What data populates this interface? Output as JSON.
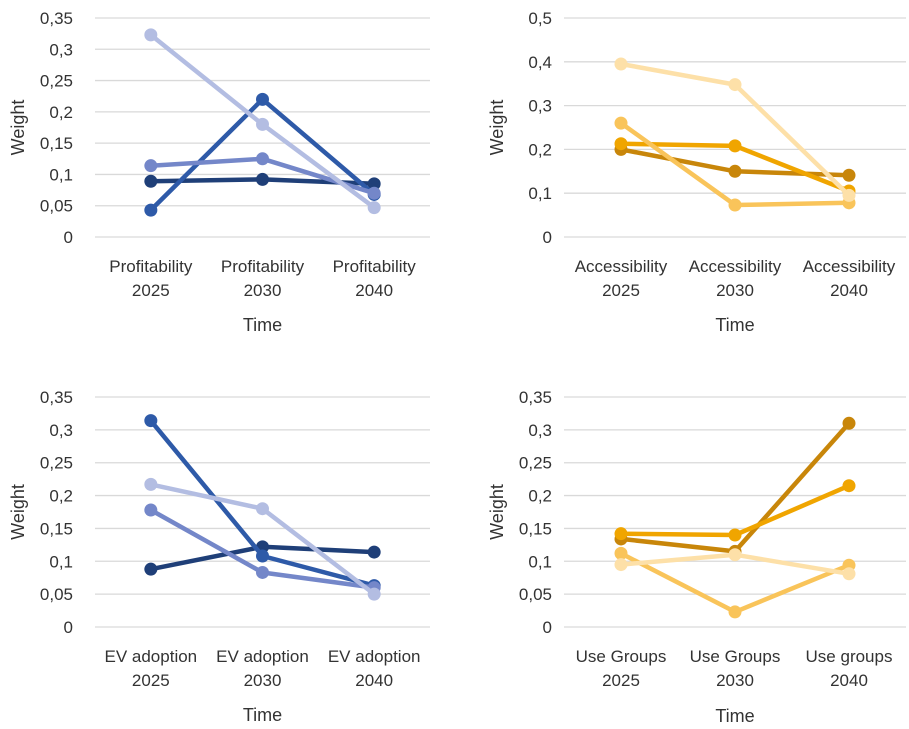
{
  "chart_data": [
    {
      "type": "line",
      "categories": [
        [
          "Profitability",
          "2025"
        ],
        [
          "Profitability",
          "2030"
        ],
        [
          "Profitability",
          "2040"
        ]
      ],
      "xlabel": "Time",
      "ylabel": "Weight",
      "ylim": [
        0,
        0.35
      ],
      "yticks": [
        "0",
        "0,05",
        "0,1",
        "0,15",
        "0,2",
        "0,25",
        "0,3",
        "0,35"
      ],
      "grid": true,
      "series": [
        {
          "color": "#1f3f78",
          "values": [
            0.089,
            0.092,
            0.085
          ]
        },
        {
          "color": "#2e5aa8",
          "values": [
            0.043,
            0.22,
            0.068
          ]
        },
        {
          "color": "#7487c9",
          "values": [
            0.114,
            0.125,
            0.07
          ]
        },
        {
          "color": "#b3bde2",
          "values": [
            0.323,
            0.18,
            0.047
          ]
        }
      ]
    },
    {
      "type": "line",
      "categories": [
        [
          "Accessibility",
          "2025"
        ],
        [
          "Accessibility",
          "2030"
        ],
        [
          "Accessibility",
          "2040"
        ]
      ],
      "xlabel": "Time",
      "ylabel": "Weight",
      "ylim": [
        0,
        0.5
      ],
      "yticks": [
        "0",
        "0,1",
        "0,2",
        "0,3",
        "0,4",
        "0,5"
      ],
      "grid": true,
      "series": [
        {
          "color": "#c8860a",
          "values": [
            0.2,
            0.15,
            0.141
          ]
        },
        {
          "color": "#f0a500",
          "values": [
            0.213,
            0.208,
            0.105
          ]
        },
        {
          "color": "#f9c45a",
          "values": [
            0.26,
            0.073,
            0.078
          ]
        },
        {
          "color": "#fde0a8",
          "values": [
            0.395,
            0.348,
            0.095
          ]
        }
      ]
    },
    {
      "type": "line",
      "categories": [
        [
          "EV adoption",
          "2025"
        ],
        [
          "EV adoption",
          "2030"
        ],
        [
          "EV adoption",
          "2040"
        ]
      ],
      "xlabel": "Time",
      "ylabel": "Weight",
      "ylim": [
        0,
        0.35
      ],
      "yticks": [
        "0",
        "0,05",
        "0,1",
        "0,15",
        "0,2",
        "0,25",
        "0,3",
        "0,35"
      ],
      "grid": true,
      "series": [
        {
          "color": "#1f3f78",
          "values": [
            0.088,
            0.122,
            0.114
          ]
        },
        {
          "color": "#2e5aa8",
          "values": [
            0.314,
            0.108,
            0.063
          ]
        },
        {
          "color": "#7487c9",
          "values": [
            0.178,
            0.083,
            0.06
          ]
        },
        {
          "color": "#b3bde2",
          "values": [
            0.217,
            0.18,
            0.05
          ]
        }
      ]
    },
    {
      "type": "line",
      "categories": [
        [
          "Use Groups",
          "2025"
        ],
        [
          "Use Groups",
          "2030"
        ],
        [
          "Use groups",
          "2040"
        ]
      ],
      "xlabel": "Time",
      "ylabel": "Weight",
      "ylim": [
        0,
        0.35
      ],
      "yticks": [
        "0",
        "0,05",
        "0,1",
        "0,15",
        "0,2",
        "0,25",
        "0,3",
        "0,35"
      ],
      "grid": true,
      "series": [
        {
          "color": "#c8860a",
          "values": [
            0.134,
            0.115,
            0.31
          ]
        },
        {
          "color": "#f0a500",
          "values": [
            0.142,
            0.14,
            0.215
          ]
        },
        {
          "color": "#f9c45a",
          "values": [
            0.112,
            0.023,
            0.094
          ]
        },
        {
          "color": "#fde0a8",
          "values": [
            0.095,
            0.11,
            0.081
          ]
        }
      ]
    }
  ]
}
